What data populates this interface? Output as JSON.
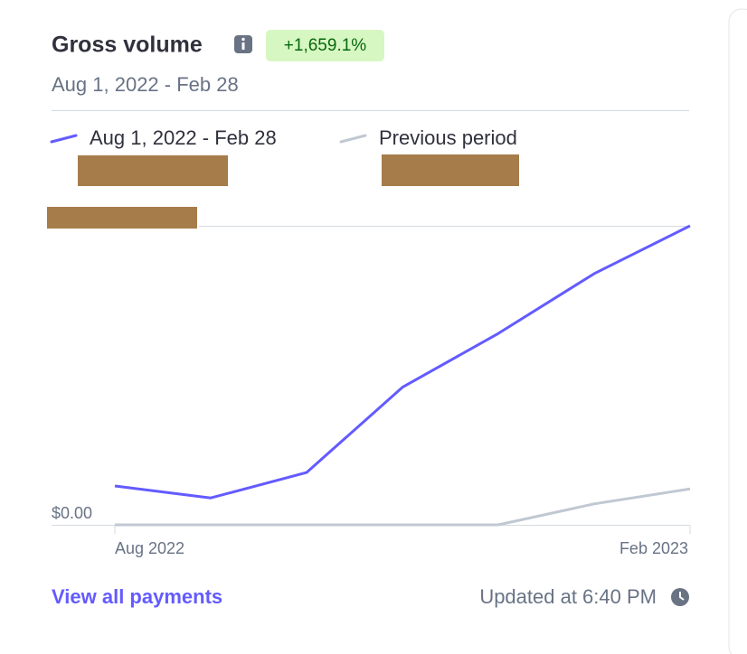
{
  "header": {
    "title": "Gross volume",
    "badge": "+1,659.1%",
    "subtitle": "Aug 1, 2022 - Feb 28"
  },
  "chart_data": {
    "type": "line",
    "categories": [
      "Aug 2022",
      null,
      null,
      null,
      null,
      null,
      "Feb 2023"
    ],
    "series": [
      {
        "name": "Aug 1, 2022 - Feb 28",
        "color": "#635bff",
        "values": [
          13,
          9,
          17.5,
          46,
          64,
          84,
          100
        ]
      },
      {
        "name": "Previous period",
        "color": "#c0c8d2",
        "values": [
          0,
          0,
          0,
          0,
          0,
          7,
          12
        ]
      }
    ],
    "ylim": [
      0,
      100
    ],
    "yticks": [
      {
        "value": 0,
        "label": "$0.00"
      }
    ]
  },
  "footer": {
    "link": "View all payments",
    "updated": "Updated at 6:40 PM"
  }
}
